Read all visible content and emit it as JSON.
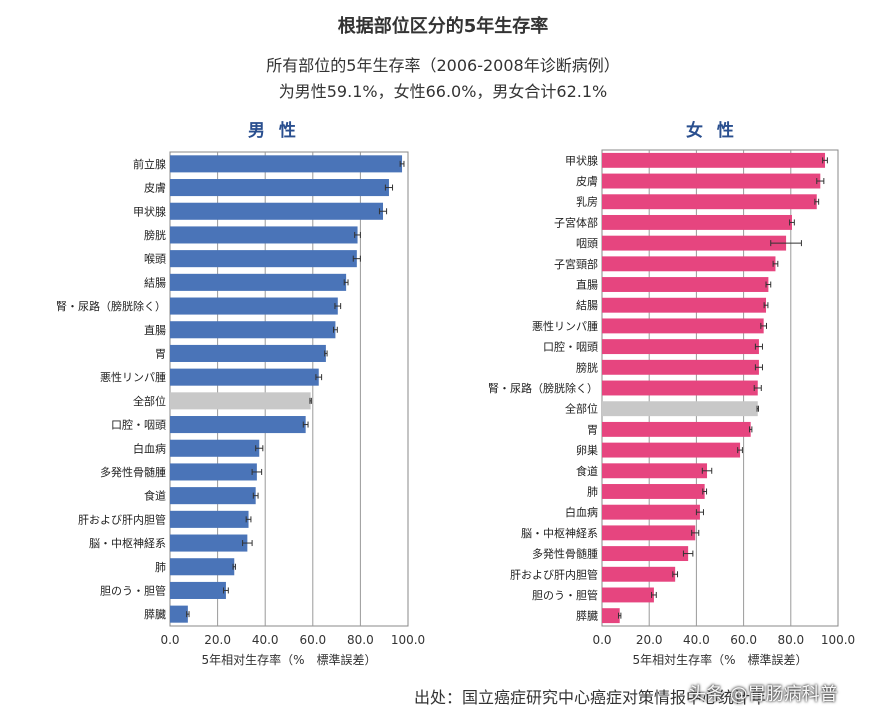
{
  "title": "根据部位区分的5年生存率",
  "subtitle_line1": "所有部位的5年生存率（2006-2008年诊断病例）",
  "subtitle_line2": "为男性59.1%，女性66.0%，男女合计62.1%",
  "source": "出处：国立癌症研究中心癌症对策情报中心统计年",
  "watermark": "头条 @胃肠病科普",
  "colors": {
    "male_bar": "#4a74b8",
    "female_bar": "#e6457f",
    "highlight_bar": "#c8c8c8",
    "error_bar": "#333333"
  },
  "chart_data": [
    {
      "type": "bar",
      "orientation": "horizontal",
      "title": "男 性",
      "xlabel": "5年相对生存率（%　標準誤差）",
      "xlim": [
        0,
        100
      ],
      "xticks": [
        "0.0",
        "20.0",
        "40.0",
        "60.0",
        "80.0",
        "100.0"
      ],
      "highlight": "全部位",
      "categories": [
        "前立腺",
        "皮膚",
        "甲状腺",
        "膀胱",
        "喉頭",
        "結腸",
        "腎・尿路（膀胱除く）",
        "直腸",
        "胃",
        "悪性リンパ腫",
        "全部位",
        "口腔・咽頭",
        "白血病",
        "多発性骨髄腫",
        "食道",
        "肝および肝内胆管",
        "脳・中枢神経系",
        "肺",
        "胆のう・胆管",
        "膵臓"
      ],
      "values": [
        97.5,
        92.0,
        89.5,
        78.8,
        78.5,
        74.0,
        70.5,
        69.5,
        65.5,
        62.5,
        59.1,
        57.0,
        37.5,
        36.5,
        36.0,
        33.0,
        32.5,
        27.0,
        23.5,
        7.5
      ],
      "errors": [
        0.8,
        1.5,
        1.5,
        1.2,
        1.5,
        0.8,
        1.2,
        0.8,
        0.5,
        1.2,
        0.3,
        1.0,
        1.5,
        2.0,
        1.0,
        1.0,
        2.0,
        0.5,
        1.0,
        0.5
      ]
    },
    {
      "type": "bar",
      "orientation": "horizontal",
      "title": "女 性",
      "xlabel": "5年相対生存率（%　標準誤差）",
      "xlim": [
        0,
        100
      ],
      "xticks": [
        "0.0",
        "20.0",
        "40.0",
        "60.0",
        "80.0",
        "100.0"
      ],
      "highlight": "全部位",
      "categories": [
        "甲状腺",
        "皮膚",
        "乳房",
        "子宮体部",
        "咽頭",
        "子宮頸部",
        "直腸",
        "結腸",
        "悪性リンパ腫",
        "口腔・咽頭",
        "膀胱",
        "腎・尿路（膀胱除く）",
        "全部位",
        "胃",
        "卵巣",
        "食道",
        "肺",
        "白血病",
        "脳・中枢神経系",
        "多発性骨髄腫",
        "肝および肝内胆管",
        "胆のう・胆管",
        "膵臓"
      ],
      "values": [
        94.5,
        92.5,
        91.0,
        80.5,
        78.0,
        73.5,
        70.5,
        69.5,
        68.5,
        66.5,
        66.5,
        66.0,
        66.0,
        63.0,
        58.5,
        44.5,
        43.5,
        41.5,
        39.5,
        36.5,
        31.0,
        22.0,
        7.5
      ],
      "errors": [
        1.0,
        1.5,
        0.8,
        1.0,
        6.5,
        1.0,
        1.0,
        0.8,
        1.2,
        1.5,
        1.5,
        1.5,
        0.3,
        0.5,
        1.0,
        2.0,
        0.8,
        1.5,
        1.5,
        2.0,
        1.0,
        1.0,
        0.5
      ]
    }
  ]
}
